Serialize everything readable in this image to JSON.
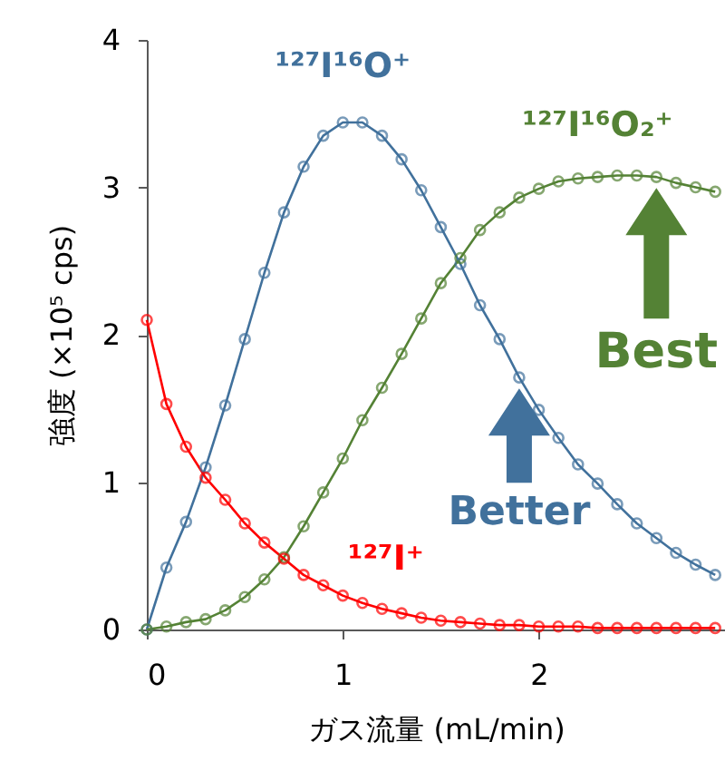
{
  "chart_data": {
    "type": "line",
    "xlabel": "ガス流量 (mL/min)",
    "ylabel": "強度 (×10⁵ cps)",
    "x": [
      0,
      0.1,
      0.2,
      0.3,
      0.4,
      0.5,
      0.6,
      0.7,
      0.8,
      0.9,
      1.0,
      1.1,
      1.2,
      1.3,
      1.4,
      1.5,
      1.6,
      1.7,
      1.8,
      1.9,
      2.0,
      2.1,
      2.2,
      2.3,
      2.4,
      2.5,
      2.6,
      2.7,
      2.8,
      2.9
    ],
    "series": [
      {
        "name": "¹²⁷I¹⁶O⁺",
        "color": "#41719c",
        "values": [
          0,
          0.42,
          0.73,
          1.1,
          1.52,
          1.97,
          2.42,
          2.83,
          3.14,
          3.35,
          3.44,
          3.44,
          3.35,
          3.19,
          2.98,
          2.73,
          2.48,
          2.2,
          1.97,
          1.71,
          1.49,
          1.3,
          1.12,
          0.99,
          0.85,
          0.72,
          0.62,
          0.52,
          0.44,
          0.37
        ]
      },
      {
        "name": "¹²⁷I¹⁶O₂⁺",
        "color": "#548235",
        "values": [
          0,
          0.02,
          0.05,
          0.07,
          0.13,
          0.22,
          0.34,
          0.49,
          0.7,
          0.93,
          1.16,
          1.42,
          1.64,
          1.87,
          2.11,
          2.35,
          2.52,
          2.71,
          2.83,
          2.93,
          2.99,
          3.04,
          3.06,
          3.07,
          3.08,
          3.08,
          3.07,
          3.03,
          3.0,
          2.97
        ]
      },
      {
        "name": "¹²⁷I⁺",
        "color": "#ff0000",
        "values": [
          2.1,
          1.53,
          1.24,
          1.03,
          0.88,
          0.72,
          0.59,
          0.48,
          0.37,
          0.3,
          0.23,
          0.18,
          0.14,
          0.11,
          0.08,
          0.06,
          0.05,
          0.04,
          0.03,
          0.03,
          0.02,
          0.02,
          0.02,
          0.01,
          0.01,
          0.01,
          0.01,
          0.01,
          0.01,
          0.01
        ]
      }
    ],
    "xlim": [
      0,
      2.95
    ],
    "xticks": [
      0,
      1,
      2
    ],
    "ylim": [
      0,
      4
    ],
    "yticks": [
      0,
      1,
      2,
      3,
      4
    ],
    "grid": false,
    "legend": false,
    "marker": "circle",
    "line_style": "solid",
    "annotations": [
      {
        "text": "Better",
        "x": 1.9,
        "y": 1.71
      },
      {
        "text": "Best",
        "x": 2.6,
        "y": 3.07
      }
    ]
  }
}
